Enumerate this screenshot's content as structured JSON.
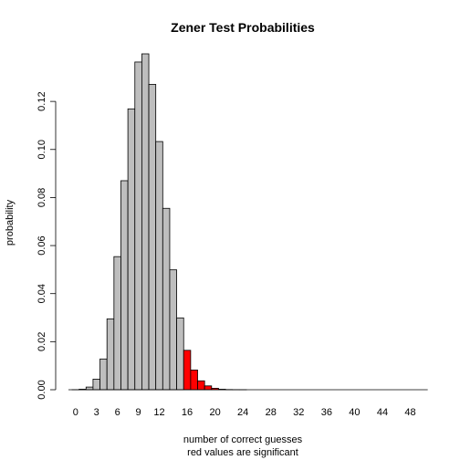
{
  "chart_data": {
    "type": "bar",
    "title": "Zener Test Probabilities",
    "xlabel": "number of correct guesses",
    "xlabel_line2": "red values are significant",
    "ylabel": "probability",
    "x": [
      0,
      1,
      2,
      3,
      4,
      5,
      6,
      7,
      8,
      9,
      10,
      11,
      12,
      13,
      14,
      15,
      16,
      17,
      18,
      19,
      20,
      21,
      22,
      23,
      24,
      25,
      26,
      27,
      28,
      29,
      30,
      31,
      32,
      33,
      34,
      35,
      36,
      37,
      38,
      39,
      40,
      41,
      42,
      43,
      44,
      45,
      46,
      47,
      48,
      49,
      50
    ],
    "values": [
      1e-05,
      0.0002,
      0.0011,
      0.0044,
      0.0128,
      0.0295,
      0.0554,
      0.087,
      0.1169,
      0.1364,
      0.1398,
      0.1271,
      0.1033,
      0.0755,
      0.0499,
      0.0299,
      0.0164,
      0.0082,
      0.0037,
      0.0016,
      0.0006,
      0.0002,
      7e-05,
      2e-05,
      5e-06,
      0,
      0,
      0,
      0,
      0,
      0,
      0,
      0,
      0,
      0,
      0,
      0,
      0,
      0,
      0,
      0,
      0,
      0,
      0,
      0,
      0,
      0,
      0,
      0,
      0,
      0
    ],
    "significant_from": 16,
    "colors": {
      "normal": "#bebebe",
      "significant": "#ff0000",
      "stroke": "#000000"
    },
    "x_ticks": [
      "0",
      "3",
      "6",
      "9",
      "12",
      "16",
      "20",
      "24",
      "28",
      "32",
      "36",
      "40",
      "44",
      "48"
    ],
    "x_tick_values": [
      0,
      3,
      6,
      9,
      12,
      16,
      20,
      24,
      28,
      32,
      36,
      40,
      44,
      48
    ],
    "y_ticks": [
      "0.00",
      "0.02",
      "0.04",
      "0.06",
      "0.08",
      "0.10",
      "0.12"
    ],
    "y_tick_values": [
      0,
      0.02,
      0.04,
      0.06,
      0.08,
      0.1,
      0.12
    ],
    "ylim": [
      0,
      0.1398
    ],
    "grid": false
  }
}
